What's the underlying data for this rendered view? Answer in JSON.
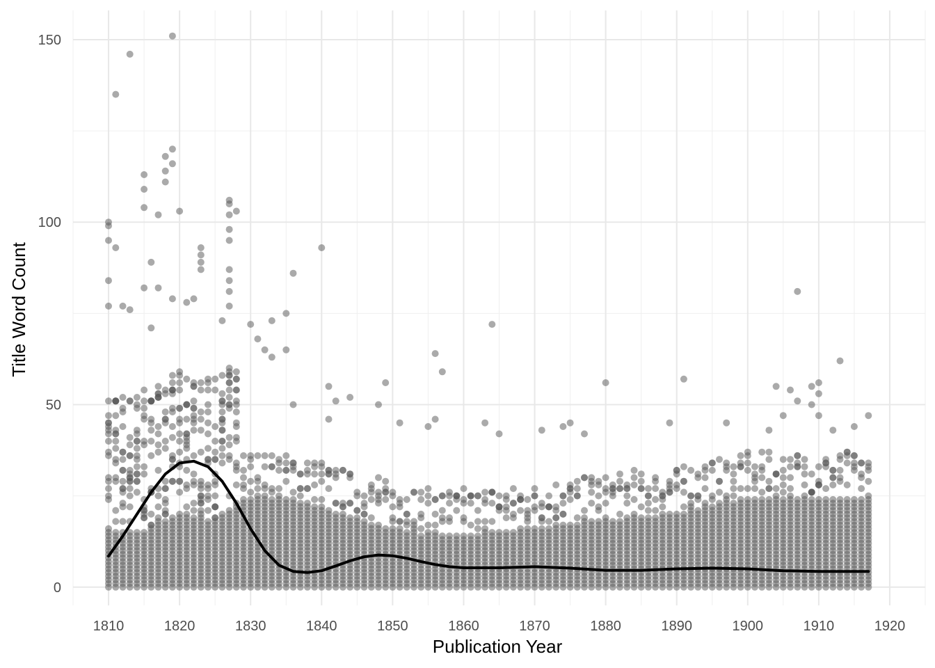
{
  "chart_data": {
    "type": "scatter",
    "xlabel": "Publication Year",
    "ylabel": "Title Word Count",
    "xlim": [
      1805,
      1925
    ],
    "ylim": [
      -5,
      158
    ],
    "x_ticks": [
      1810,
      1820,
      1830,
      1840,
      1850,
      1860,
      1870,
      1880,
      1890,
      1900,
      1910,
      1920
    ],
    "y_ticks": [
      0,
      50,
      100,
      150
    ],
    "grid": true,
    "legend": "none",
    "point_color": "#555555",
    "point_opacity": 0.5,
    "line_color": "#000000",
    "points": {
      "x_range": [
        1810,
        1917
      ],
      "dense_band_max": [
        [
          1810,
          15
        ],
        [
          1815,
          15
        ],
        [
          1820,
          20
        ],
        [
          1825,
          18
        ],
        [
          1829,
          24
        ],
        [
          1835,
          24
        ],
        [
          1840,
          22
        ],
        [
          1845,
          18
        ],
        [
          1850,
          16
        ],
        [
          1855,
          14
        ],
        [
          1860,
          14
        ],
        [
          1865,
          15
        ],
        [
          1870,
          16
        ],
        [
          1875,
          17
        ],
        [
          1880,
          18
        ],
        [
          1885,
          19
        ],
        [
          1890,
          20
        ],
        [
          1895,
          22
        ],
        [
          1900,
          24
        ],
        [
          1905,
          24
        ],
        [
          1910,
          24
        ],
        [
          1917,
          24
        ]
      ],
      "outliers": [
        [
          1819,
          151
        ],
        [
          1813,
          146
        ],
        [
          1811,
          135
        ],
        [
          1819,
          120
        ],
        [
          1818,
          118
        ],
        [
          1819,
          116
        ],
        [
          1818,
          114
        ],
        [
          1815,
          113
        ],
        [
          1818,
          111
        ],
        [
          1815,
          109
        ],
        [
          1815,
          104
        ],
        [
          1820,
          103
        ],
        [
          1817,
          102
        ],
        [
          1828,
          103
        ],
        [
          1827,
          106
        ],
        [
          1827,
          105
        ],
        [
          1827,
          102
        ],
        [
          1810,
          100
        ],
        [
          1810,
          99
        ],
        [
          1827,
          98
        ],
        [
          1827,
          95
        ],
        [
          1810,
          95
        ],
        [
          1811,
          93
        ],
        [
          1840,
          93
        ],
        [
          1823,
          93
        ],
        [
          1823,
          91
        ],
        [
          1823,
          89
        ],
        [
          1823,
          87
        ],
        [
          1816,
          89
        ],
        [
          1827,
          87
        ],
        [
          1827,
          84
        ],
        [
          1827,
          81
        ],
        [
          1810,
          84
        ],
        [
          1815,
          82
        ],
        [
          1817,
          82
        ],
        [
          1907,
          81
        ],
        [
          1819,
          79
        ],
        [
          1822,
          79
        ],
        [
          1821,
          78
        ],
        [
          1812,
          77
        ],
        [
          1810,
          77
        ],
        [
          1836,
          86
        ],
        [
          1827,
          77
        ],
        [
          1826,
          73
        ],
        [
          1835,
          75
        ],
        [
          1813,
          76
        ],
        [
          1816,
          71
        ],
        [
          1830,
          72
        ],
        [
          1833,
          73
        ],
        [
          1864,
          72
        ],
        [
          1831,
          68
        ],
        [
          1832,
          65
        ],
        [
          1833,
          63
        ],
        [
          1835,
          65
        ],
        [
          1856,
          64
        ],
        [
          1857,
          59
        ],
        [
          1913,
          62
        ],
        [
          1891,
          57
        ],
        [
          1880,
          56
        ],
        [
          1849,
          56
        ],
        [
          1841,
          55
        ],
        [
          1842,
          51
        ],
        [
          1844,
          52
        ],
        [
          1848,
          50
        ],
        [
          1836,
          50
        ],
        [
          1904,
          55
        ],
        [
          1906,
          54
        ],
        [
          1907,
          51
        ],
        [
          1909,
          55
        ],
        [
          1910,
          56
        ],
        [
          1910,
          53
        ],
        [
          1841,
          46
        ],
        [
          1851,
          45
        ],
        [
          1856,
          46
        ],
        [
          1855,
          44
        ],
        [
          1863,
          45
        ],
        [
          1874,
          44
        ],
        [
          1875,
          45
        ],
        [
          1877,
          42
        ],
        [
          1871,
          43
        ],
        [
          1865,
          42
        ],
        [
          1889,
          45
        ],
        [
          1897,
          45
        ],
        [
          1903,
          43
        ],
        [
          1905,
          47
        ],
        [
          1909,
          50
        ],
        [
          1910,
          47
        ],
        [
          1917,
          47
        ],
        [
          1915,
          44
        ],
        [
          1912,
          43
        ]
      ]
    },
    "smooth_line": {
      "x": [
        1810,
        1812,
        1814,
        1816,
        1818,
        1820,
        1822,
        1824,
        1826,
        1828,
        1830,
        1832,
        1834,
        1836,
        1838,
        1840,
        1842,
        1844,
        1846,
        1848,
        1850,
        1852,
        1854,
        1856,
        1858,
        1860,
        1865,
        1870,
        1875,
        1880,
        1885,
        1890,
        1895,
        1900,
        1905,
        1910,
        1917
      ],
      "y": [
        8.5,
        14,
        20,
        26,
        31,
        34,
        34.5,
        33,
        29,
        23,
        16,
        10,
        6,
        4.3,
        4,
        4.5,
        5.8,
        7.2,
        8.3,
        8.8,
        8.6,
        7.9,
        7,
        6.2,
        5.6,
        5.3,
        5.3,
        5.6,
        5.2,
        4.6,
        4.6,
        5.0,
        5.2,
        5.0,
        4.5,
        4.3,
        4.3
      ]
    }
  }
}
